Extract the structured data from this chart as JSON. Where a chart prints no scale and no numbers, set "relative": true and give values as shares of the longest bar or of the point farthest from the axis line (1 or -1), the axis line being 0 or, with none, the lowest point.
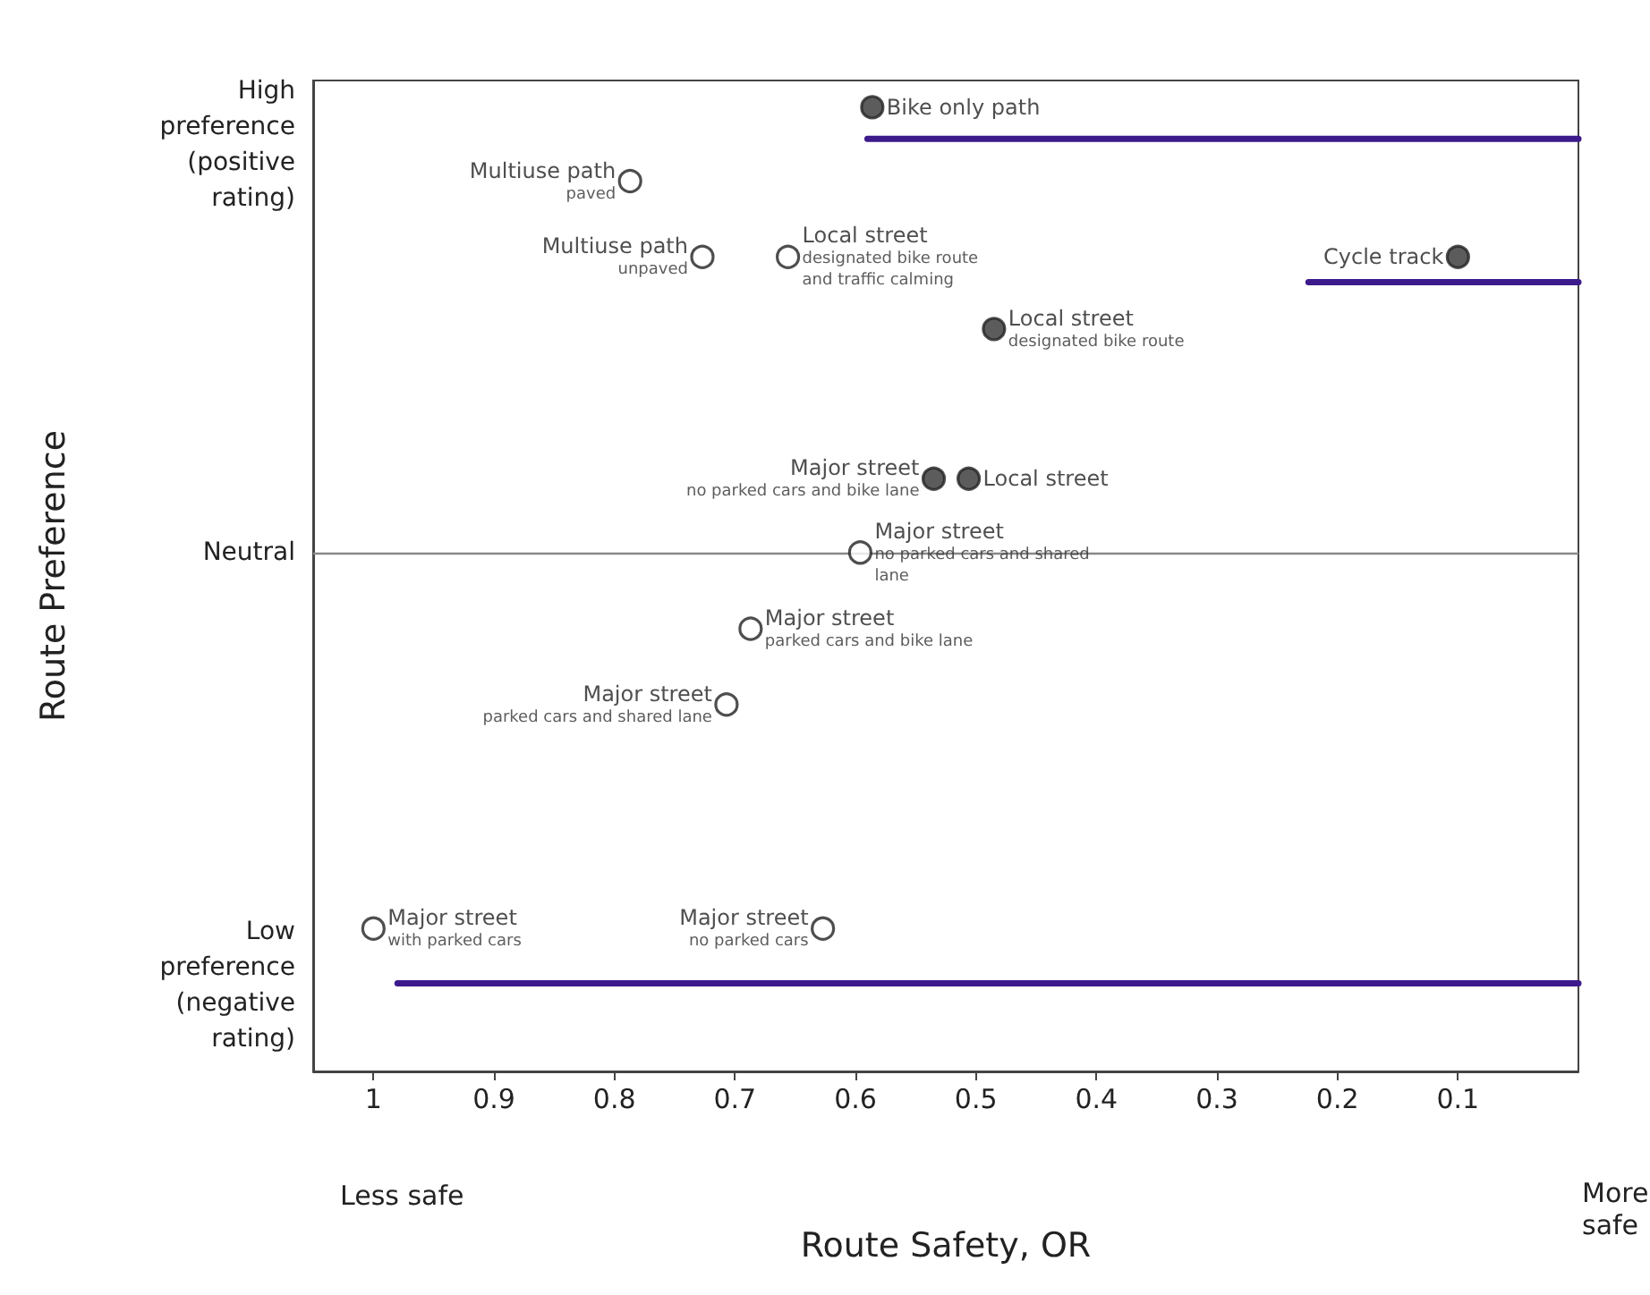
{
  "chart_data": {
    "type": "scatter",
    "xlabel": "Route Safety, OR",
    "xlim": [
      1.05,
      0
    ],
    "xticks": [
      1,
      0.9,
      0.8,
      0.7,
      0.6,
      0.5,
      0.4,
      0.3,
      0.2,
      0.1
    ],
    "relative": true,
    "grid": false,
    "marker": "circle",
    "ref_lines": [
      {
        "axis": "y",
        "value": 0,
        "color": "#888888"
      }
    ],
    "series": [
      {
        "color": "#333333",
        "x": [
          0.586,
          0.1,
          0.485,
          0.535,
          0.506
        ],
        "values": [
          1,
          0.664,
          0.502,
          0.166,
          0.166
        ]
      },
      {
        "color": "#ffffff",
        "x": [
          0.787,
          0.727,
          0.656,
          0.596,
          0.687,
          0.707,
          1.0,
          0.627
        ],
        "values": [
          0.834,
          0.664,
          0.664,
          0,
          -0.171,
          -0.341,
          -0.844,
          -0.844
        ]
      },
      {
        "type": "line",
        "color": "#3d1a8c",
        "marker": "none",
        "x": [
          0.59,
          0
        ],
        "values": [
          0.929,
          0.929
        ]
      },
      {
        "type": "line",
        "color": "#3d1a8c",
        "marker": "none",
        "x": [
          0.224,
          0
        ],
        "values": [
          0.607,
          0.607
        ]
      },
      {
        "type": "line",
        "color": "#3d1a8c",
        "marker": "none",
        "x": [
          0.98,
          0
        ],
        "values": [
          -0.967,
          -0.967
        ]
      }
    ],
    "annotations": [
      {
        "text": "Bike only path",
        "x": 0.586,
        "y": 1
      },
      {
        "text": "Multiuse path\npaved",
        "x": 0.787,
        "y": 0.834
      },
      {
        "text": "Multiuse path\nunpaved",
        "x": 0.727,
        "y": 0.664
      },
      {
        "text": "Local street\ndesignated bike route\nand traffic calming",
        "x": 0.656,
        "y": 0.664
      },
      {
        "text": "Cycle track",
        "x": 0.1,
        "y": 0.664
      },
      {
        "text": "Local street\ndesignated bike route",
        "x": 0.485,
        "y": 0.502
      },
      {
        "text": "Major street\nno parked cars and bike lane",
        "x": 0.535,
        "y": 0.166
      },
      {
        "text": "Local street",
        "x": 0.506,
        "y": 0.166
      },
      {
        "text": "Major street\nno parked cars and shared\nlane",
        "x": 0.596,
        "y": 0
      },
      {
        "text": "Major street\nparked cars and bike lane",
        "x": 0.687,
        "y": -0.171
      },
      {
        "text": "Major street\nparked cars and shared lane",
        "x": 0.707,
        "y": -0.341
      },
      {
        "text": "Major street\nwith parked cars",
        "x": 1.0,
        "y": -0.844
      },
      {
        "text": "Major street\nno parked cars",
        "x": 0.627,
        "y": -0.844
      },
      "Less safe",
      "More\nsafe",
      "High\npreference\n(positive\nrating)",
      "Neutral",
      "Low\npreference\n(negative\nrating)",
      "Route Preference"
    ]
  }
}
